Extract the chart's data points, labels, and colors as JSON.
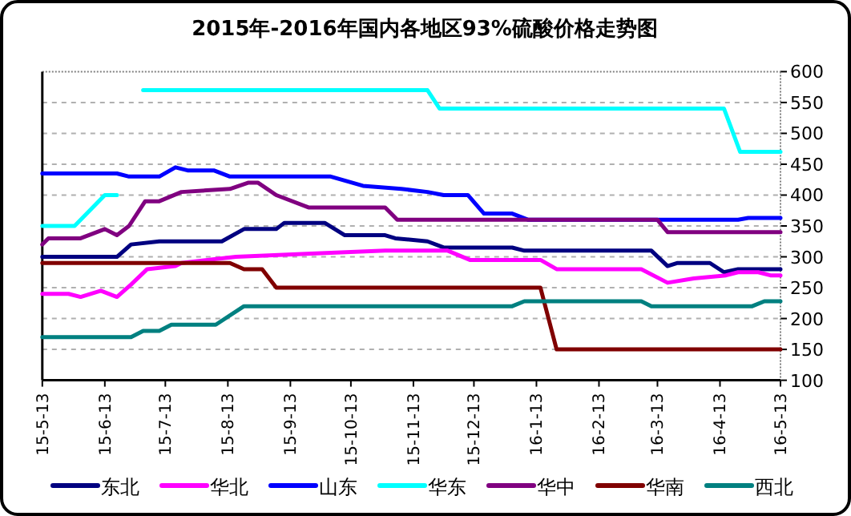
{
  "chart_data": {
    "type": "line",
    "title": "2015年-2016年国内各地区93%硫酸价格走势图",
    "xlim": [
      "2015-05-13",
      "2016-05-13"
    ],
    "xticks": [
      {
        "value": "2015-05-13",
        "label": "15-5-13"
      },
      {
        "value": "2015-06-13",
        "label": "15-6-13"
      },
      {
        "value": "2015-07-13",
        "label": "15-7-13"
      },
      {
        "value": "2015-08-13",
        "label": "15-8-13"
      },
      {
        "value": "2015-09-13",
        "label": "15-9-13"
      },
      {
        "value": "2015-10-13",
        "label": "15-10-13"
      },
      {
        "value": "2015-11-13",
        "label": "15-11-13"
      },
      {
        "value": "2015-12-13",
        "label": "15-12-13"
      },
      {
        "value": "2016-01-13",
        "label": "16-1-13"
      },
      {
        "value": "2016-02-13",
        "label": "16-2-13"
      },
      {
        "value": "2016-03-13",
        "label": "16-3-13"
      },
      {
        "value": "2016-04-13",
        "label": "16-4-13"
      },
      {
        "value": "2016-05-13",
        "label": "16-5-13"
      }
    ],
    "ylim": [
      100,
      600
    ],
    "yticks": [
      100,
      150,
      200,
      250,
      300,
      350,
      400,
      450,
      500,
      550,
      600
    ],
    "grid": "y",
    "legend": "bottom",
    "series": [
      {
        "name": "东北",
        "color": "#000080",
        "x": [
          "2015-05-13",
          "2015-06-19",
          "2015-06-26",
          "2015-07-10",
          "2015-08-10",
          "2015-08-21",
          "2015-09-06",
          "2015-09-10",
          "2015-09-30",
          "2015-10-10",
          "2015-10-30",
          "2015-11-04",
          "2015-11-20",
          "2015-11-28",
          "2016-01-01",
          "2016-01-07",
          "2016-03-10",
          "2016-03-18",
          "2016-03-23",
          "2016-04-08",
          "2016-04-15",
          "2016-04-22",
          "2016-05-13"
        ],
        "values": [
          300,
          300,
          320,
          325,
          325,
          345,
          345,
          355,
          355,
          335,
          335,
          330,
          325,
          315,
          315,
          310,
          310,
          285,
          290,
          290,
          275,
          280,
          280
        ]
      },
      {
        "name": "华北",
        "color": "#ff00ff",
        "x": [
          "2015-05-13",
          "2015-05-26",
          "2015-06-01",
          "2015-06-11",
          "2015-06-19",
          "2015-06-26",
          "2015-07-04",
          "2015-07-18",
          "2015-07-21",
          "2015-08-17",
          "2015-09-21",
          "2015-10-30",
          "2015-11-30",
          "2015-12-11",
          "2016-01-15",
          "2016-01-23",
          "2016-03-05",
          "2016-03-18",
          "2016-03-31",
          "2016-04-16",
          "2016-04-22",
          "2016-05-02",
          "2016-05-08",
          "2016-05-13"
        ],
        "values": [
          240,
          240,
          235,
          245,
          235,
          255,
          280,
          285,
          290,
          300,
          305,
          310,
          310,
          295,
          295,
          280,
          280,
          258,
          265,
          270,
          275,
          275,
          270,
          270
        ]
      },
      {
        "name": "山东",
        "color": "#0000ff",
        "x": [
          "2015-05-13",
          "2015-06-19",
          "2015-06-25",
          "2015-07-10",
          "2015-07-18",
          "2015-07-24",
          "2015-08-06",
          "2015-08-14",
          "2015-10-03",
          "2015-10-19",
          "2015-11-07",
          "2015-11-20",
          "2015-11-28",
          "2015-12-10",
          "2015-12-18",
          "2016-01-01",
          "2016-01-09",
          "2016-04-22",
          "2016-04-27",
          "2016-05-13"
        ],
        "values": [
          435,
          435,
          430,
          430,
          445,
          440,
          440,
          430,
          430,
          415,
          410,
          405,
          400,
          400,
          370,
          370,
          360,
          360,
          363,
          363
        ]
      },
      {
        "name": "华东",
        "color": "#00ffff",
        "x": [
          "2015-05-13",
          "2015-05-29",
          "2015-06-13",
          "2015-06-19",
          "2015-06-26",
          "2015-07-02",
          "2015-11-20",
          "2015-11-26",
          "2016-04-15",
          "2016-04-23",
          "2016-05-13"
        ],
        "values": [
          350,
          350,
          400,
          400,
          null,
          570,
          570,
          540,
          540,
          470,
          470
        ]
      },
      {
        "name": "华中",
        "color": "#800080",
        "x": [
          "2015-05-13",
          "2015-05-16",
          "2015-06-01",
          "2015-06-13",
          "2015-06-19",
          "2015-06-25",
          "2015-07-03",
          "2015-07-10",
          "2015-07-21",
          "2015-08-14",
          "2015-08-23",
          "2015-08-28",
          "2015-09-06",
          "2015-09-22",
          "2015-10-30",
          "2015-11-05",
          "2016-03-13",
          "2016-03-18",
          "2016-05-13"
        ],
        "values": [
          320,
          330,
          330,
          345,
          335,
          350,
          390,
          390,
          405,
          410,
          420,
          420,
          400,
          380,
          380,
          360,
          360,
          340,
          340
        ]
      },
      {
        "name": "华南",
        "color": "#800000",
        "x": [
          "2015-05-13",
          "2015-08-14",
          "2015-08-21",
          "2015-08-30",
          "2015-09-06",
          "2016-01-15",
          "2016-01-23",
          "2016-05-13"
        ],
        "values": [
          290,
          290,
          280,
          280,
          250,
          250,
          150,
          150
        ]
      },
      {
        "name": "西北",
        "color": "#008080",
        "x": [
          "2015-05-13",
          "2015-06-26",
          "2015-07-02",
          "2015-07-10",
          "2015-07-16",
          "2015-08-07",
          "2015-08-21",
          "2016-01-01",
          "2016-01-07",
          "2016-03-05",
          "2016-03-10",
          "2016-04-29",
          "2016-05-05",
          "2016-05-13"
        ],
        "values": [
          170,
          170,
          180,
          180,
          190,
          190,
          220,
          220,
          228,
          228,
          220,
          220,
          228,
          228
        ]
      }
    ]
  }
}
